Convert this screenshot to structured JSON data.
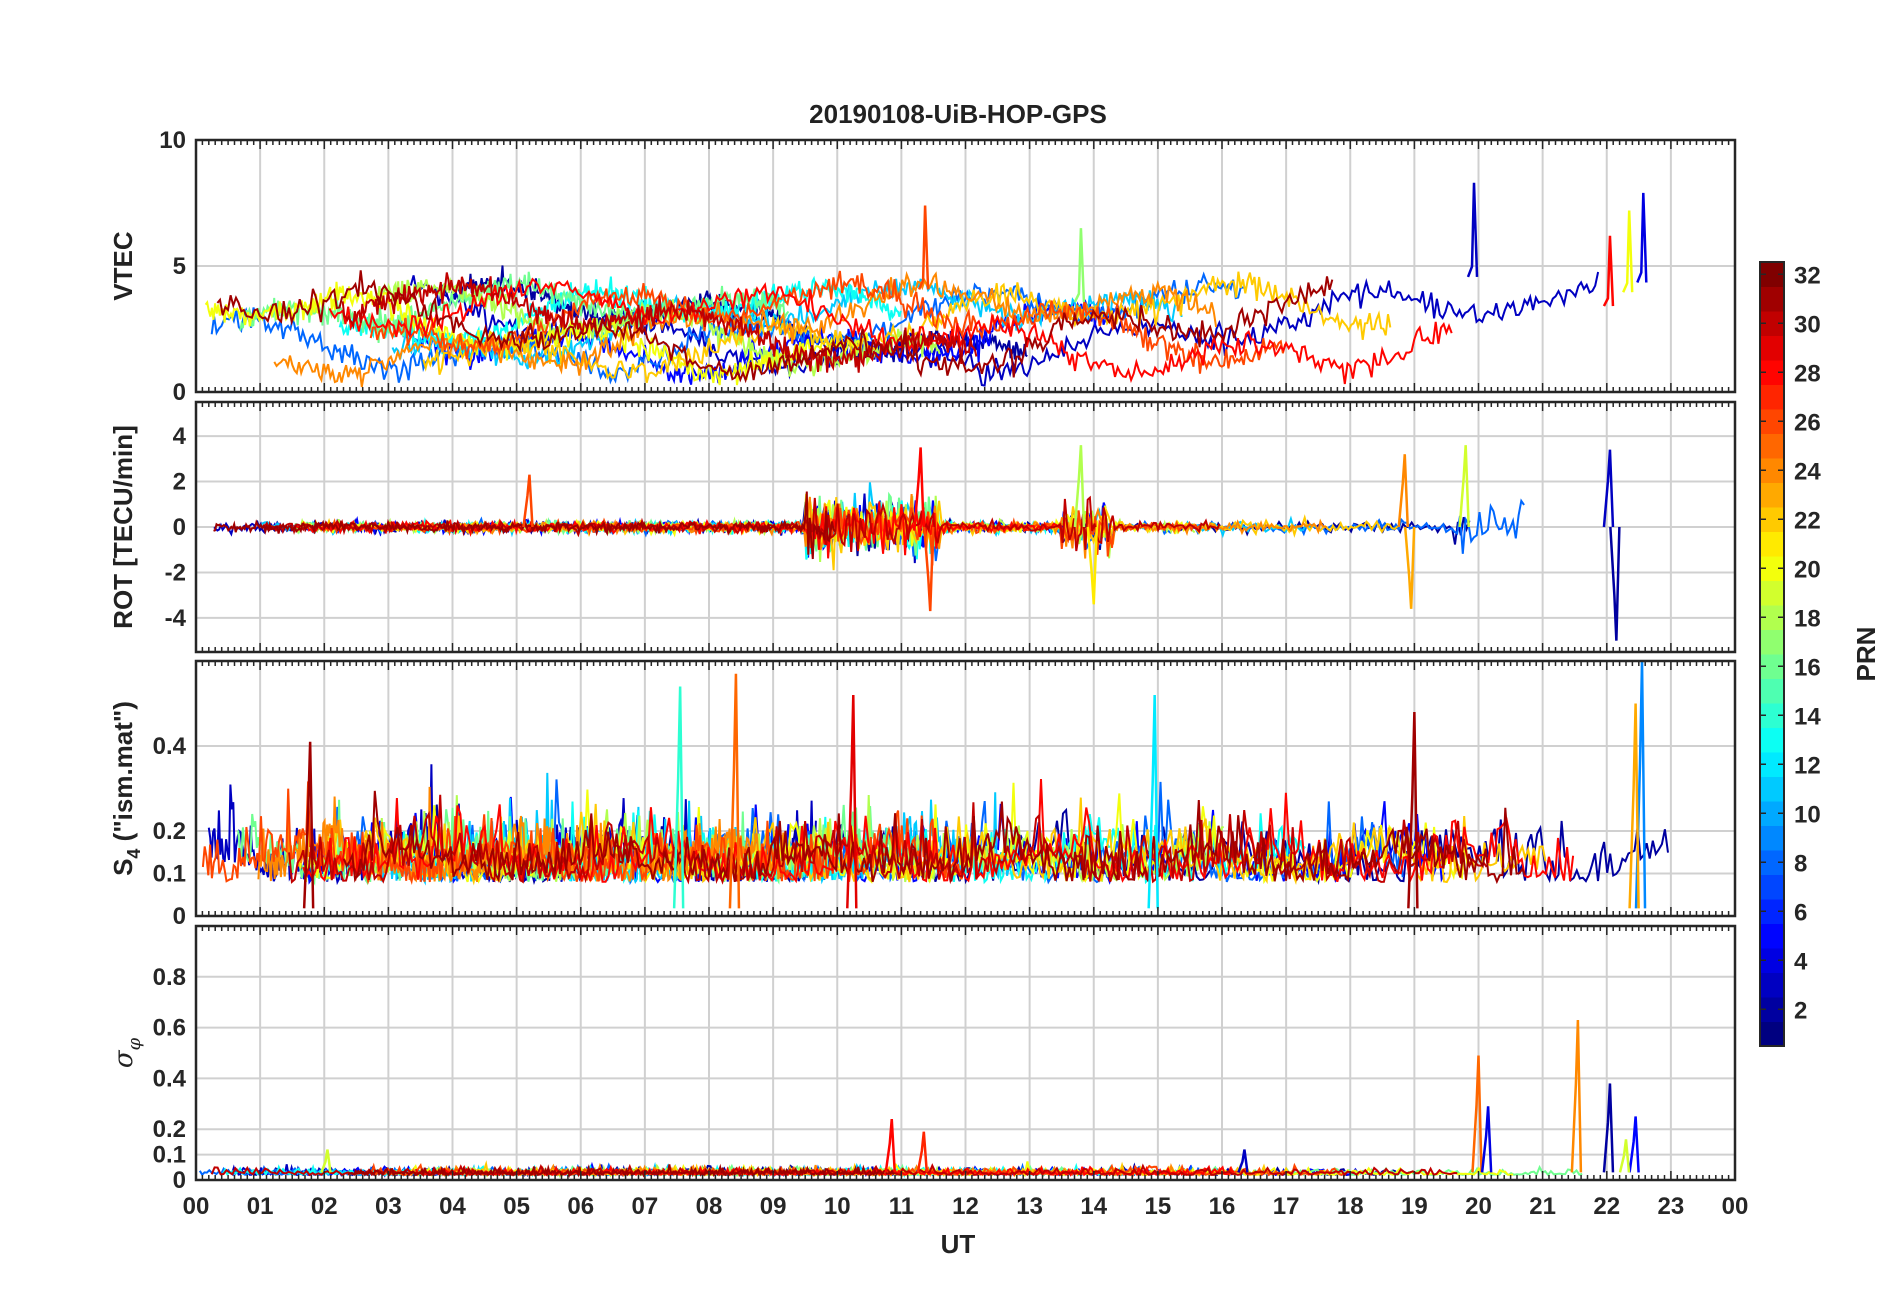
{
  "chart_data": {
    "type": "line",
    "title": "20190108-UiB-HOP-GPS",
    "xlabel": "UT",
    "x_tick_labels": [
      "00",
      "01",
      "02",
      "03",
      "04",
      "05",
      "06",
      "07",
      "08",
      "09",
      "10",
      "11",
      "12",
      "13",
      "14",
      "15",
      "16",
      "17",
      "18",
      "19",
      "20",
      "21",
      "22",
      "23",
      "00"
    ],
    "x_range_hours": [
      0,
      24
    ],
    "grid": true,
    "colorbar": {
      "label": "PRN",
      "range": [
        1,
        32
      ],
      "tick_labels": [
        "2",
        "4",
        "6",
        "8",
        "10",
        "12",
        "14",
        "16",
        "18",
        "20",
        "22",
        "24",
        "26",
        "28",
        "30",
        "32"
      ],
      "colormap": "jet",
      "placement": "right"
    },
    "panels": [
      {
        "ylabel": "VTEC",
        "ylim": [
          0,
          10
        ],
        "y_tick_labels": [
          "0",
          "5",
          "10"
        ],
        "events": [
          {
            "prn": 3,
            "hour": 19.93,
            "value": 8.3
          },
          {
            "prn": 4,
            "hour": 22.57,
            "value": 7.9
          },
          {
            "prn": 26,
            "hour": 11.37,
            "value": 7.4
          },
          {
            "prn": 20,
            "hour": 22.35,
            "value": 7.2
          },
          {
            "prn": 28,
            "hour": 22.05,
            "value": 6.2
          },
          {
            "prn": 17,
            "hour": 13.8,
            "value": 6.5
          }
        ]
      },
      {
        "ylabel": "ROT [TECU/min]",
        "ylim": [
          -5.5,
          5.5
        ],
        "y_tick_labels": [
          "-4",
          "-2",
          "0",
          "2",
          "4"
        ],
        "events": [
          {
            "prn": 26,
            "hour": 5.2,
            "value": 2.3
          },
          {
            "prn": 28,
            "hour": 11.3,
            "value": 3.5
          },
          {
            "prn": 26,
            "hour": 11.45,
            "value": -3.7
          },
          {
            "prn": 18,
            "hour": 13.8,
            "value": 3.6
          },
          {
            "prn": 21,
            "hour": 14.0,
            "value": -3.4
          },
          {
            "prn": 24,
            "hour": 18.85,
            "value": 3.2
          },
          {
            "prn": 23,
            "hour": 18.95,
            "value": -3.6
          },
          {
            "prn": 19,
            "hour": 19.8,
            "value": 3.6
          },
          {
            "prn": 2,
            "hour": 22.15,
            "value": -5.0
          },
          {
            "prn": 3,
            "hour": 22.05,
            "value": 3.4
          }
        ]
      },
      {
        "ylabel": "S4 (\"ism.mat\")",
        "ylabel_main": "S",
        "ylabel_sub": "4",
        "ylabel_rest": " (\"ism.mat\")",
        "ylim": [
          0,
          0.6
        ],
        "y_tick_labels": [
          "0",
          "0.1",
          "0.2",
          "0.4"
        ],
        "events": [
          {
            "prn": 25,
            "hour": 8.42,
            "value": 0.57
          },
          {
            "prn": 14,
            "hour": 7.55,
            "value": 0.54
          },
          {
            "prn": 29,
            "hour": 10.25,
            "value": 0.52
          },
          {
            "prn": 9,
            "hour": 22.55,
            "value": 0.6
          },
          {
            "prn": 31,
            "hour": 1.78,
            "value": 0.41
          },
          {
            "prn": 12,
            "hour": 14.95,
            "value": 0.52
          },
          {
            "prn": 31,
            "hour": 19.0,
            "value": 0.48
          },
          {
            "prn": 23,
            "hour": 22.45,
            "value": 0.5
          }
        ]
      },
      {
        "ylabel": "σ φ",
        "ylabel_main": "σ",
        "ylabel_sub": "φ",
        "ylim": [
          0,
          1
        ],
        "y_tick_labels": [
          "0",
          "0.1",
          "0.2",
          "0.4",
          "0.6",
          "0.8"
        ],
        "events": [
          {
            "prn": 24,
            "hour": 21.55,
            "value": 0.63
          },
          {
            "prn": 25,
            "hour": 20.0,
            "value": 0.49
          },
          {
            "prn": 2,
            "hour": 22.05,
            "value": 0.38
          },
          {
            "prn": 4,
            "hour": 20.15,
            "value": 0.29
          },
          {
            "prn": 5,
            "hour": 22.45,
            "value": 0.25
          },
          {
            "prn": 28,
            "hour": 10.85,
            "value": 0.24
          },
          {
            "prn": 27,
            "hour": 11.35,
            "value": 0.19
          },
          {
            "prn": 19,
            "hour": 22.3,
            "value": 0.16
          },
          {
            "prn": 3,
            "hour": 16.35,
            "value": 0.12
          },
          {
            "prn": 19,
            "hour": 2.05,
            "value": 0.12
          }
        ]
      }
    ]
  }
}
